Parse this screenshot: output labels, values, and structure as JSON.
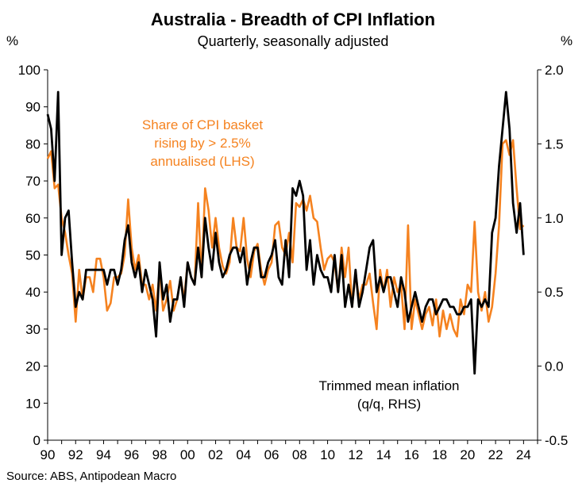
{
  "chart_data": {
    "type": "line",
    "title": "Australia - Breadth of CPI Inflation",
    "subtitle": "Quarterly, seasonally adjusted",
    "ylabel_left": "%",
    "ylabel_right": "%",
    "source": "Source: ABS, Antipodean Macro",
    "x_ticks": [
      "90",
      "92",
      "94",
      "96",
      "98",
      "00",
      "02",
      "04",
      "06",
      "08",
      "10",
      "12",
      "14",
      "16",
      "18",
      "20",
      "22",
      "24"
    ],
    "x_range": [
      1990,
      2025
    ],
    "y_left": {
      "ticks": [
        "0",
        "10",
        "20",
        "30",
        "40",
        "50",
        "60",
        "70",
        "80",
        "90",
        "100"
      ],
      "range": [
        0,
        100
      ]
    },
    "y_right": {
      "ticks": [
        "-0.5",
        "0.0",
        "0.5",
        "1.0",
        "1.5",
        "2.0"
      ],
      "range": [
        -0.5,
        2.0
      ]
    },
    "annotations": [
      {
        "lines": [
          "Share of CPI basket",
          "rising by > 2.5%",
          "annualised (LHS)"
        ],
        "color": "#F5821F"
      },
      {
        "lines": [
          "Trimmed mean inflation",
          "(q/q, RHS)"
        ],
        "color": "#000000"
      }
    ],
    "series": [
      {
        "name": "Share of CPI basket rising by > 2.5% annualised (LHS)",
        "axis": "left",
        "color": "#F5821F",
        "x": [
          1990.0,
          1990.25,
          1990.5,
          1990.75,
          1991.0,
          1991.25,
          1991.5,
          1991.75,
          1992.0,
          1992.25,
          1992.5,
          1992.75,
          1993.0,
          1993.25,
          1993.5,
          1993.75,
          1994.0,
          1994.25,
          1994.5,
          1994.75,
          1995.0,
          1995.25,
          1995.5,
          1995.75,
          1996.0,
          1996.25,
          1996.5,
          1996.75,
          1997.0,
          1997.25,
          1997.5,
          1997.75,
          1998.0,
          1998.25,
          1998.5,
          1998.75,
          1999.0,
          1999.25,
          1999.5,
          1999.75,
          2000.0,
          2000.25,
          2000.5,
          2000.75,
          2001.0,
          2001.25,
          2001.5,
          2001.75,
          2002.0,
          2002.25,
          2002.5,
          2002.75,
          2003.0,
          2003.25,
          2003.5,
          2003.75,
          2004.0,
          2004.25,
          2004.5,
          2004.75,
          2005.0,
          2005.25,
          2005.5,
          2005.75,
          2006.0,
          2006.25,
          2006.5,
          2006.75,
          2007.0,
          2007.25,
          2007.5,
          2007.75,
          2008.0,
          2008.25,
          2008.5,
          2008.75,
          2009.0,
          2009.25,
          2009.5,
          2009.75,
          2010.0,
          2010.25,
          2010.5,
          2010.75,
          2011.0,
          2011.25,
          2011.5,
          2011.75,
          2012.0,
          2012.25,
          2012.5,
          2012.75,
          2013.0,
          2013.25,
          2013.5,
          2013.75,
          2014.0,
          2014.25,
          2014.5,
          2014.75,
          2015.0,
          2015.25,
          2015.5,
          2015.75,
          2016.0,
          2016.25,
          2016.5,
          2016.75,
          2017.0,
          2017.25,
          2017.5,
          2017.75,
          2018.0,
          2018.25,
          2018.5,
          2018.75,
          2019.0,
          2019.25,
          2019.5,
          2019.75,
          2020.0,
          2020.25,
          2020.5,
          2020.75,
          2021.0,
          2021.25,
          2021.5,
          2021.75,
          2022.0,
          2022.25,
          2022.5,
          2022.75,
          2023.0,
          2023.25,
          2023.5,
          2023.75,
          2024.0
        ],
        "values": [
          76,
          78,
          68,
          69,
          60,
          56,
          50,
          45,
          32,
          46,
          38,
          44,
          44,
          40,
          49,
          49,
          44,
          35,
          37,
          44,
          44,
          45,
          50,
          65,
          52,
          46,
          50,
          42,
          42,
          38,
          42,
          35,
          46,
          35,
          38,
          43,
          35,
          38,
          44,
          38,
          48,
          44,
          42,
          64,
          44,
          68,
          62,
          52,
          60,
          52,
          47,
          45,
          48,
          60,
          52,
          51,
          60,
          49,
          44,
          51,
          53,
          46,
          42,
          46,
          48,
          58,
          59,
          52,
          50,
          56,
          48,
          64,
          63,
          65,
          62,
          66,
          60,
          59,
          52,
          46,
          49,
          50,
          48,
          40,
          52,
          44,
          52,
          36,
          45,
          38,
          42,
          42,
          45,
          37,
          30,
          46,
          40,
          46,
          36,
          44,
          40,
          42,
          30,
          58,
          30,
          38,
          34,
          30,
          34,
          36,
          31,
          38,
          28,
          35,
          30,
          34,
          30,
          28,
          38,
          34,
          42,
          40,
          59,
          40,
          35,
          40,
          32,
          36,
          45,
          58,
          80,
          81,
          77,
          81,
          68,
          57,
          58
        ]
      },
      {
        "name": "Trimmed mean inflation (q/q, RHS)",
        "axis": "right",
        "color": "#000000",
        "x": [
          1990.0,
          1990.25,
          1990.5,
          1990.75,
          1991.0,
          1991.25,
          1991.5,
          1991.75,
          1992.0,
          1992.25,
          1992.5,
          1992.75,
          1993.0,
          1993.25,
          1993.5,
          1993.75,
          1994.0,
          1994.25,
          1994.5,
          1994.75,
          1995.0,
          1995.25,
          1995.5,
          1995.75,
          1996.0,
          1996.25,
          1996.5,
          1996.75,
          1997.0,
          1997.25,
          1997.5,
          1997.75,
          1998.0,
          1998.25,
          1998.5,
          1998.75,
          1999.0,
          1999.25,
          1999.5,
          1999.75,
          2000.0,
          2000.25,
          2000.5,
          2000.75,
          2001.0,
          2001.25,
          2001.5,
          2001.75,
          2002.0,
          2002.25,
          2002.5,
          2002.75,
          2003.0,
          2003.25,
          2003.5,
          2003.75,
          2004.0,
          2004.25,
          2004.5,
          2004.75,
          2005.0,
          2005.25,
          2005.5,
          2005.75,
          2006.0,
          2006.25,
          2006.5,
          2006.75,
          2007.0,
          2007.25,
          2007.5,
          2007.75,
          2008.0,
          2008.25,
          2008.5,
          2008.75,
          2009.0,
          2009.25,
          2009.5,
          2009.75,
          2010.0,
          2010.25,
          2010.5,
          2010.75,
          2011.0,
          2011.25,
          2011.5,
          2011.75,
          2012.0,
          2012.25,
          2012.5,
          2012.75,
          2013.0,
          2013.25,
          2013.5,
          2013.75,
          2014.0,
          2014.25,
          2014.5,
          2014.75,
          2015.0,
          2015.25,
          2015.5,
          2015.75,
          2016.0,
          2016.25,
          2016.5,
          2016.75,
          2017.0,
          2017.25,
          2017.5,
          2017.75,
          2018.0,
          2018.25,
          2018.5,
          2018.75,
          2019.0,
          2019.25,
          2019.5,
          2019.75,
          2020.0,
          2020.25,
          2020.5,
          2020.75,
          2021.0,
          2021.25,
          2021.5,
          2021.75,
          2022.0,
          2022.25,
          2022.5,
          2022.75,
          2023.0,
          2023.25,
          2023.5,
          2023.75,
          2024.0
        ],
        "values": [
          1.7,
          1.6,
          1.25,
          1.85,
          0.75,
          1.0,
          1.05,
          0.7,
          0.4,
          0.5,
          0.45,
          0.65,
          0.65,
          0.65,
          0.65,
          0.65,
          0.65,
          0.55,
          0.65,
          0.65,
          0.55,
          0.65,
          0.85,
          0.95,
          0.7,
          0.6,
          0.7,
          0.5,
          0.65,
          0.55,
          0.45,
          0.2,
          0.7,
          0.45,
          0.55,
          0.3,
          0.45,
          0.45,
          0.6,
          0.4,
          0.7,
          0.6,
          0.55,
          0.8,
          0.6,
          1.0,
          0.8,
          0.65,
          0.9,
          0.7,
          0.6,
          0.65,
          0.75,
          0.8,
          0.8,
          0.7,
          0.8,
          0.55,
          0.7,
          0.8,
          0.8,
          0.6,
          0.6,
          0.7,
          0.75,
          0.85,
          0.6,
          0.55,
          0.85,
          0.6,
          1.2,
          1.15,
          1.25,
          1.15,
          0.65,
          0.85,
          0.55,
          0.75,
          0.65,
          0.6,
          0.6,
          0.5,
          0.75,
          0.5,
          0.75,
          0.4,
          0.55,
          0.4,
          0.65,
          0.4,
          0.5,
          0.65,
          0.8,
          0.85,
          0.5,
          0.6,
          0.5,
          0.6,
          0.6,
          0.5,
          0.4,
          0.6,
          0.5,
          0.3,
          0.4,
          0.5,
          0.4,
          0.3,
          0.4,
          0.45,
          0.45,
          0.35,
          0.4,
          0.45,
          0.45,
          0.4,
          0.4,
          0.35,
          0.35,
          0.4,
          0.4,
          0.45,
          -0.05,
          0.45,
          0.4,
          0.45,
          0.4,
          0.9,
          1.0,
          1.35,
          1.6,
          1.85,
          1.6,
          1.1,
          0.9,
          1.1,
          0.75
        ]
      }
    ]
  }
}
